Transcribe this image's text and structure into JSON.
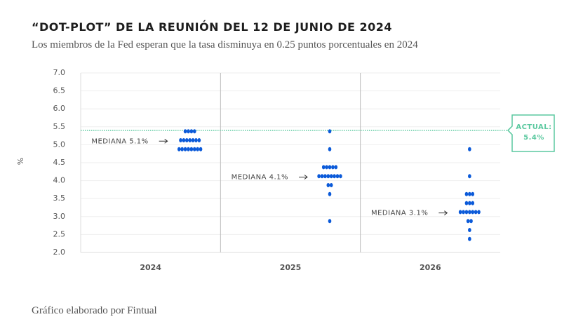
{
  "chart_data": {
    "type": "dot",
    "title": "“DOT-PLOT” DE LA REUNIÓN DEL 12 DE JUNIO DE 2024",
    "subtitle": "Los miembros de la Fed esperan que la tasa disminuya en 0.25 puntos porcentuales en 2024",
    "y_label": "%",
    "footer": "Gráfico elaborado por Fintual",
    "color": "#0b5ad9",
    "categories": [
      "2024",
      "2025",
      "2026"
    ],
    "values": [
      [
        5.375,
        5.375,
        5.375,
        5.375,
        5.125,
        5.125,
        5.125,
        5.125,
        5.125,
        5.125,
        5.125,
        4.875,
        4.875,
        4.875,
        4.875,
        4.875,
        4.875,
        4.875,
        4.875
      ],
      [
        5.375,
        4.875,
        4.375,
        4.375,
        4.375,
        4.375,
        4.375,
        4.125,
        4.125,
        4.125,
        4.125,
        4.125,
        4.125,
        4.125,
        4.125,
        3.875,
        3.875,
        3.625,
        2.875
      ],
      [
        4.875,
        4.125,
        3.625,
        3.625,
        3.625,
        3.375,
        3.375,
        3.375,
        3.125,
        3.125,
        3.125,
        3.125,
        3.125,
        3.125,
        3.125,
        2.875,
        2.875,
        2.625,
        2.375
      ]
    ],
    "medians": [
      {
        "label": "MEDIANA 5.1%",
        "value": 5.1
      },
      {
        "label": "MEDIANA 4.1%",
        "value": 4.1
      },
      {
        "label": "MEDIANA 3.1%",
        "value": 3.1
      }
    ],
    "reference": {
      "label": "ACTUAL:",
      "value": 5.4,
      "value_label": "5.4%",
      "color": "#5cc9a0"
    },
    "ylim": [
      2,
      7
    ],
    "yticks": [
      {
        "value": 2,
        "label": "2.0"
      },
      {
        "value": 2.5,
        "label": "2.5"
      },
      {
        "value": 3,
        "label": "3.0"
      },
      {
        "value": 3.5,
        "label": "3.5"
      },
      {
        "value": 4,
        "label": "4.0"
      },
      {
        "value": 4.5,
        "label": "4.5"
      },
      {
        "value": 5,
        "label": "5.0"
      },
      {
        "value": 5.5,
        "label": "5.5"
      },
      {
        "value": 6,
        "label": "6.0"
      },
      {
        "value": 6.5,
        "label": "6.5"
      },
      {
        "value": 7,
        "label": "7.0"
      }
    ],
    "grid": true
  }
}
